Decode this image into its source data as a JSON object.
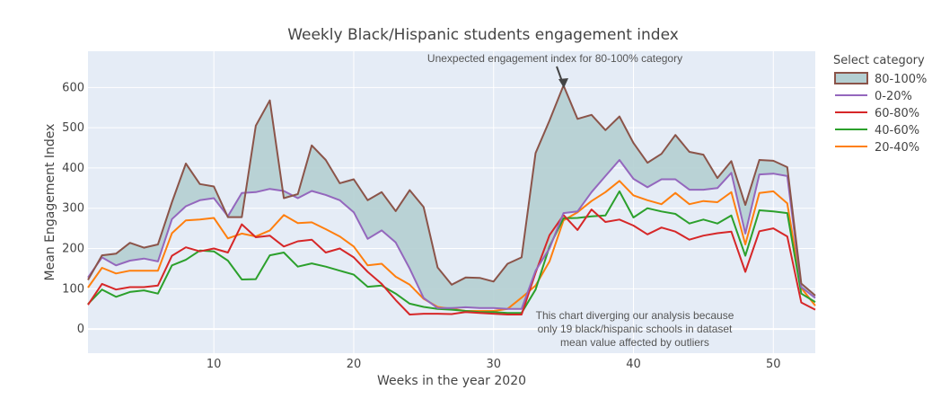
{
  "chart_data": {
    "type": "line",
    "title": "Weekly Black/Hispanic students engagement index",
    "xlabel": "Weeks in the year 2020",
    "ylabel": "Mean Engagement Index",
    "xlim": [
      1,
      53
    ],
    "ylim": [
      -60,
      690
    ],
    "x_ticks": [
      10,
      20,
      30,
      40,
      50
    ],
    "y_ticks": [
      0,
      100,
      200,
      300,
      400,
      500,
      600
    ],
    "grid": true,
    "legend_title": "Select category",
    "legend_position": "top-right",
    "x": [
      1,
      2,
      3,
      4,
      5,
      6,
      7,
      8,
      9,
      10,
      11,
      12,
      13,
      14,
      15,
      16,
      17,
      18,
      19,
      20,
      21,
      22,
      23,
      24,
      25,
      26,
      27,
      28,
      29,
      30,
      31,
      32,
      33,
      34,
      35,
      36,
      37,
      38,
      39,
      40,
      41,
      42,
      43,
      44,
      45,
      46,
      47,
      48,
      49,
      50,
      51,
      52,
      53
    ],
    "series": [
      {
        "name": "80-100%",
        "color": "#8b5449",
        "fill": "#b4cfd2",
        "values": [
          122,
          183,
          187,
          214,
          202,
          210,
          315,
          411,
          360,
          354,
          278,
          278,
          505,
          568,
          325,
          335,
          456,
          420,
          362,
          372,
          320,
          340,
          293,
          345,
          303,
          153,
          110,
          128,
          127,
          118,
          162,
          178,
          437,
          518,
          605,
          522,
          532,
          494,
          528,
          462,
          413,
          435,
          482,
          440,
          433,
          375,
          417,
          308,
          420,
          418,
          402,
          113,
          83
        ]
      },
      {
        "name": "0-20%",
        "color": "#9467bd",
        "values": [
          128,
          178,
          158,
          170,
          175,
          168,
          273,
          305,
          320,
          325,
          280,
          338,
          340,
          348,
          343,
          325,
          343,
          333,
          320,
          290,
          224,
          245,
          215,
          150,
          77,
          52,
          52,
          54,
          52,
          52,
          50,
          50,
          145,
          200,
          288,
          292,
          340,
          380,
          420,
          373,
          352,
          372,
          372,
          346,
          346,
          350,
          388,
          237,
          384,
          386,
          380,
          104,
          77
        ]
      },
      {
        "name": "60-80%",
        "color": "#d62728",
        "values": [
          60,
          112,
          98,
          104,
          104,
          108,
          182,
          203,
          193,
          200,
          190,
          260,
          228,
          232,
          205,
          218,
          222,
          190,
          200,
          178,
          142,
          112,
          72,
          36,
          38,
          38,
          37,
          42,
          40,
          38,
          36,
          36,
          140,
          233,
          283,
          246,
          297,
          266,
          272,
          257,
          235,
          252,
          242,
          222,
          232,
          238,
          242,
          142,
          243,
          250,
          230,
          66,
          48
        ]
      },
      {
        "name": "40-60%",
        "color": "#2ca02c",
        "values": [
          62,
          98,
          80,
          92,
          96,
          88,
          158,
          172,
          195,
          193,
          170,
          123,
          124,
          183,
          190,
          155,
          163,
          155,
          145,
          135,
          105,
          108,
          88,
          63,
          55,
          50,
          48,
          45,
          42,
          42,
          40,
          40,
          98,
          205,
          275,
          276,
          280,
          282,
          342,
          277,
          300,
          292,
          286,
          262,
          272,
          262,
          282,
          182,
          295,
          292,
          288,
          88,
          67
        ]
      },
      {
        "name": "20-40%",
        "color": "#ff7f0e",
        "values": [
          103,
          152,
          138,
          145,
          145,
          145,
          238,
          270,
          272,
          276,
          225,
          237,
          230,
          245,
          283,
          263,
          265,
          248,
          230,
          205,
          158,
          162,
          130,
          110,
          75,
          55,
          50,
          45,
          45,
          45,
          50,
          78,
          108,
          168,
          270,
          290,
          318,
          340,
          368,
          332,
          320,
          310,
          338,
          310,
          318,
          315,
          340,
          210,
          338,
          342,
          312,
          102,
          58
        ]
      }
    ],
    "annotations": [
      {
        "text": "Unexpected engagement index for 80-100% category",
        "x": 35,
        "y": 605
      },
      {
        "lines": [
          "This chart diverging our analysis because",
          "only 19 black/hispanic schools in dataset",
          "mean value affected by outliers"
        ],
        "x": 40,
        "y": -5
      }
    ]
  }
}
